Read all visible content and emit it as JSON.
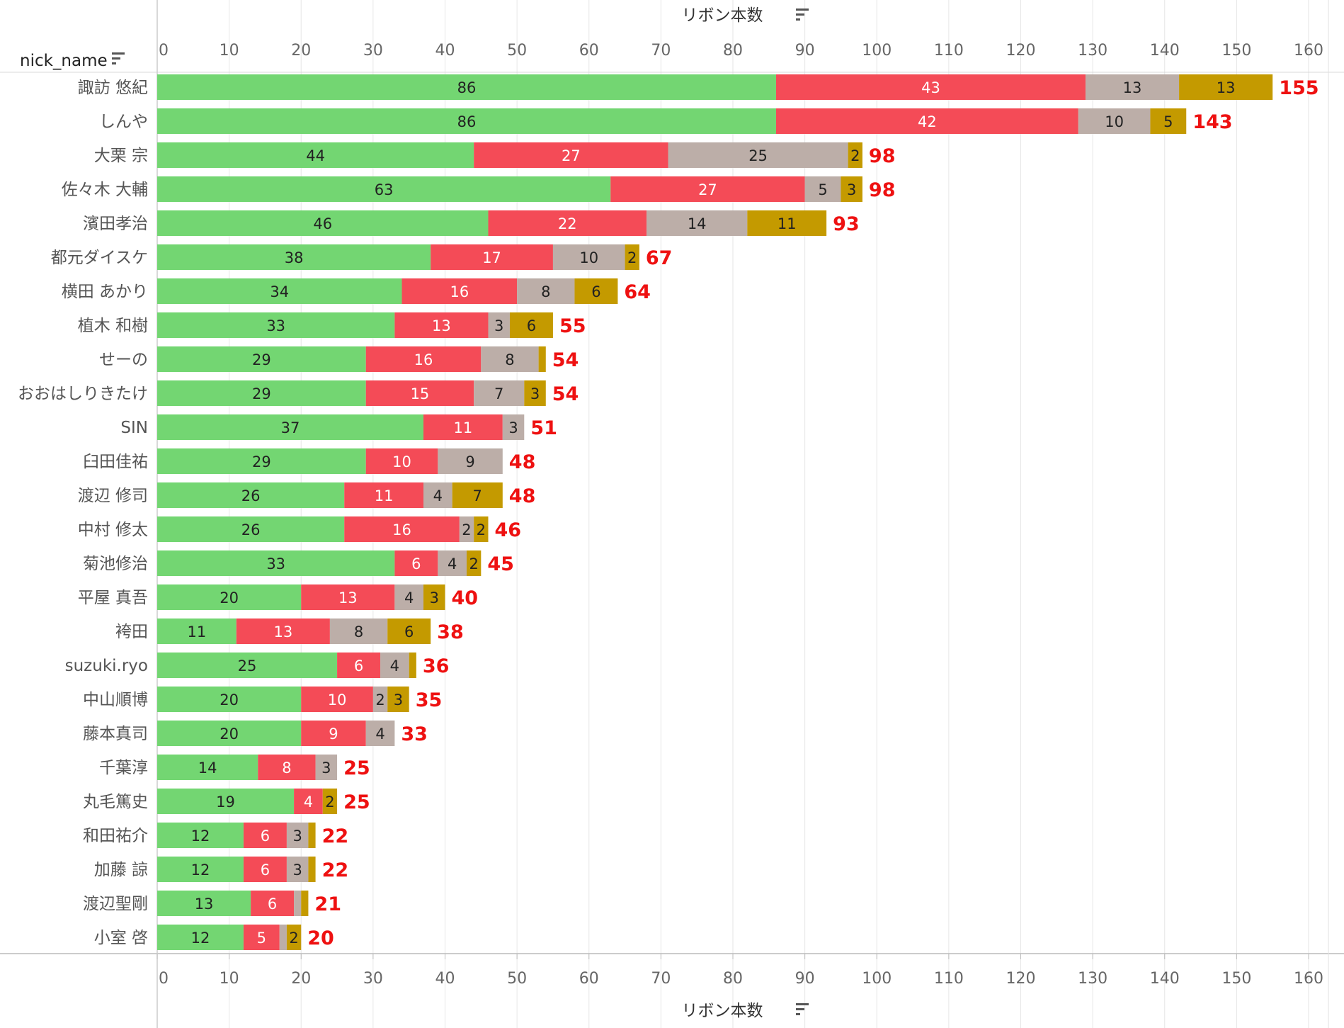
{
  "colors": {
    "series": [
      "#73d672",
      "#f44b57",
      "#bcaea8",
      "#c49a00"
    ],
    "segment_text": [
      "#222222",
      "#ffffff",
      "#222222",
      "#222222"
    ],
    "total": "#ee1111",
    "grid": "#e6e6e6"
  },
  "header": {
    "column_title": "nick_name",
    "sort_icon": "sort-icon"
  },
  "chart_data": {
    "type": "bar",
    "orientation": "horizontal",
    "stacked": true,
    "xlabel": "リボン本数",
    "xlim": [
      0,
      160
    ],
    "xticks": [
      0,
      10,
      20,
      30,
      40,
      50,
      60,
      70,
      80,
      90,
      100,
      110,
      120,
      130,
      140,
      150,
      160
    ],
    "grid": true,
    "categories": [
      "諏訪 悠紀",
      "しんや",
      "大栗 宗",
      "佐々木 大輔",
      "濱田孝治",
      "都元ダイスケ",
      "横田 あかり",
      "植木 和樹",
      "せーの",
      "おおはしりきたけ",
      "SIN",
      "臼田佳祐",
      "渡辺 修司",
      "中村 修太",
      "菊池修治",
      "平屋 真吾",
      "袴田",
      "suzuki.ryo",
      "中山順博",
      "藤本真司",
      "千葉淳",
      "丸毛篤史",
      "和田祐介",
      "加藤 諒",
      "渡辺聖剛",
      "小室 啓"
    ],
    "series": [
      {
        "values": [
          86,
          86,
          44,
          63,
          46,
          38,
          34,
          33,
          29,
          29,
          37,
          29,
          26,
          26,
          33,
          20,
          11,
          25,
          20,
          20,
          14,
          19,
          12,
          12,
          13,
          12
        ]
      },
      {
        "values": [
          43,
          42,
          27,
          27,
          22,
          17,
          16,
          13,
          16,
          15,
          11,
          10,
          11,
          16,
          6,
          13,
          13,
          6,
          10,
          9,
          8,
          4,
          6,
          6,
          6,
          5
        ]
      },
      {
        "values": [
          13,
          10,
          25,
          5,
          14,
          10,
          8,
          3,
          8,
          7,
          3,
          9,
          4,
          2,
          4,
          4,
          8,
          4,
          2,
          4,
          3,
          0,
          3,
          3,
          1,
          1
        ]
      },
      {
        "values": [
          13,
          5,
          2,
          3,
          11,
          2,
          6,
          6,
          1,
          3,
          0,
          0,
          7,
          2,
          2,
          3,
          6,
          1,
          3,
          0,
          0,
          2,
          1,
          1,
          1,
          2
        ]
      }
    ],
    "totals": [
      155,
      143,
      98,
      98,
      93,
      67,
      64,
      55,
      54,
      54,
      51,
      48,
      48,
      46,
      45,
      40,
      38,
      36,
      35,
      33,
      25,
      25,
      22,
      22,
      21,
      20
    ]
  }
}
